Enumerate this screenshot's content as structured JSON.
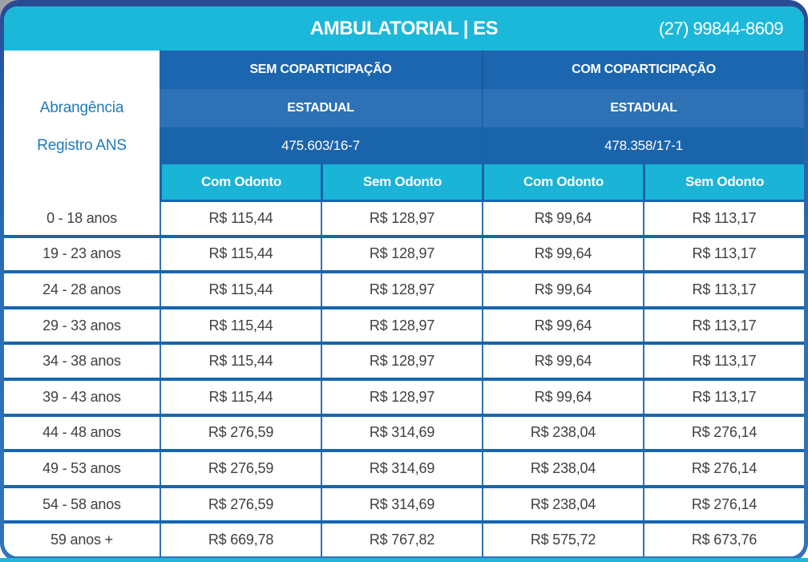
{
  "header": {
    "title": "AMBULATORIAL | ES",
    "phone": "(27) 99844-8609"
  },
  "groups": [
    {
      "label": "SEM COPARTICIPAÇÃO"
    },
    {
      "label": "COM COPARTICIPAÇÃO"
    }
  ],
  "abrangencia": {
    "label": "Abrangência",
    "values": [
      "ESTADUAL",
      "ESTADUAL"
    ]
  },
  "registro": {
    "label": "Registro ANS",
    "values": [
      "475.603/16-7",
      "478.358/17-1"
    ]
  },
  "subheaders": [
    "Com Odonto",
    "Sem Odonto",
    "Com Odonto",
    "Sem Odonto"
  ],
  "price_rows": [
    {
      "age": "0 - 18 anos",
      "values": [
        "R$ 115,44",
        "R$ 128,97",
        "R$ 99,64",
        "R$ 113,17"
      ]
    },
    {
      "age": "19 - 23 anos",
      "values": [
        "R$ 115,44",
        "R$ 128,97",
        "R$ 99,64",
        "R$ 113,17"
      ]
    },
    {
      "age": "24 - 28 anos",
      "values": [
        "R$ 115,44",
        "R$ 128,97",
        "R$ 99,64",
        "R$ 113,17"
      ]
    },
    {
      "age": "29 - 33 anos",
      "values": [
        "R$ 115,44",
        "R$ 128,97",
        "R$ 99,64",
        "R$ 113,17"
      ]
    },
    {
      "age": "34 - 38 anos",
      "values": [
        "R$ 115,44",
        "R$ 128,97",
        "R$ 99,64",
        "R$ 113,17"
      ]
    },
    {
      "age": "39 - 43 anos",
      "values": [
        "R$ 115,44",
        "R$ 128,97",
        "R$ 99,64",
        "R$ 113,17"
      ]
    },
    {
      "age": "44 - 48 anos",
      "values": [
        "R$ 276,59",
        "R$ 314,69",
        "R$ 238,04",
        "R$ 276,14"
      ]
    },
    {
      "age": "49 - 53 anos",
      "values": [
        "R$ 276,59",
        "R$ 314,69",
        "R$ 238,04",
        "R$ 276,14"
      ]
    },
    {
      "age": "54 - 58 anos",
      "values": [
        "R$ 276,59",
        "R$ 314,69",
        "R$ 238,04",
        "R$ 276,14"
      ]
    },
    {
      "age": "59 anos +",
      "values": [
        "R$ 669,78",
        "R$ 767,82",
        "R$ 575,72",
        "R$ 673,76"
      ]
    }
  ],
  "colors": {
    "header_cyan": "#1cb8d9",
    "subheader_cyan": "#19b4d6",
    "group_blue": "#1b66af",
    "estadual_blue": "#2e71b5",
    "registro_blue": "#1a64ac",
    "separator_blue": "#1666b0",
    "label_text_blue": "#1e7abc",
    "body_text": "#3f4042",
    "border_navy": "#2a4a92"
  }
}
